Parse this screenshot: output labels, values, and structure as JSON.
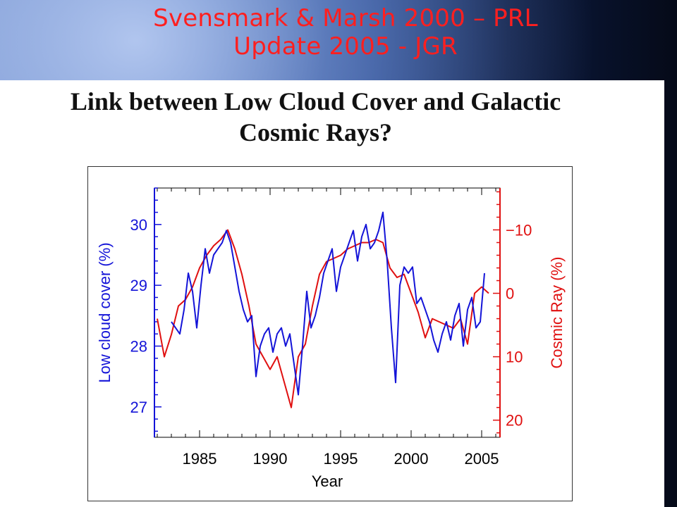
{
  "slide": {
    "title_line1": "Svensmark & Marsh 2000 – PRL",
    "title_line2": "Update 2005 - JGR",
    "heading_line1": "Link between Low Cloud Cover and Galactic",
    "heading_line2": "Cosmic Rays?"
  },
  "colors": {
    "title": "#ff1f1f",
    "cloud_series": "#1414d8",
    "cosmic_series": "#e01010"
  },
  "chart_data": {
    "type": "line",
    "title": "",
    "xlabel": "Year",
    "ylabel_left": "Low cloud cover (%)",
    "ylabel_right": "Cosmic Ray (%)",
    "xlim": [
      1981.8,
      2006.3
    ],
    "ylim_left": [
      26.5,
      30.6
    ],
    "ylim_right": [
      22.7,
      -16.6
    ],
    "right_axis_inverted": true,
    "x_ticks": [
      1985,
      1990,
      1995,
      2000,
      2005
    ],
    "y_ticks_left": [
      27,
      28,
      29,
      30
    ],
    "y_ticks_right": [
      -10,
      0,
      10,
      20
    ],
    "y_tick_labels_right": [
      "−10",
      "0",
      "10",
      "20"
    ],
    "grid": false,
    "series": [
      {
        "name": "Low cloud cover",
        "axis": "left",
        "x": [
          1983.0,
          1983.3,
          1983.6,
          1983.9,
          1984.2,
          1984.5,
          1984.8,
          1985.1,
          1985.4,
          1985.7,
          1986.0,
          1986.3,
          1986.6,
          1986.9,
          1987.2,
          1987.5,
          1987.8,
          1988.1,
          1988.4,
          1988.7,
          1989.0,
          1989.3,
          1989.6,
          1989.9,
          1990.2,
          1990.5,
          1990.8,
          1991.1,
          1991.4,
          1991.7,
          1992.0,
          1992.3,
          1992.6,
          1992.9,
          1993.2,
          1993.5,
          1993.8,
          1994.1,
          1994.4,
          1994.7,
          1995.0,
          1995.3,
          1995.6,
          1995.9,
          1996.2,
          1996.5,
          1996.8,
          1997.1,
          1997.4,
          1997.7,
          1998.0,
          1998.3,
          1998.6,
          1998.9,
          1999.2,
          1999.5,
          1999.8,
          2000.1,
          2000.4,
          2000.7,
          2001.0,
          2001.3,
          2001.6,
          2001.9,
          2002.2,
          2002.5,
          2002.8,
          2003.1,
          2003.4,
          2003.7,
          2004.0,
          2004.3,
          2004.6,
          2004.9,
          2005.2
        ],
        "values": [
          28.4,
          28.3,
          28.2,
          28.6,
          29.2,
          28.9,
          28.3,
          29.0,
          29.6,
          29.2,
          29.5,
          29.6,
          29.7,
          29.9,
          29.7,
          29.3,
          28.9,
          28.6,
          28.4,
          28.5,
          27.5,
          28.0,
          28.2,
          28.3,
          27.9,
          28.2,
          28.3,
          28.0,
          28.2,
          27.7,
          27.2,
          28.0,
          28.9,
          28.3,
          28.5,
          28.8,
          29.2,
          29.4,
          29.6,
          28.9,
          29.3,
          29.5,
          29.7,
          29.9,
          29.4,
          29.8,
          30.0,
          29.6,
          29.7,
          29.9,
          30.2,
          29.4,
          28.3,
          27.4,
          29.0,
          29.3,
          29.2,
          29.3,
          28.7,
          28.8,
          28.6,
          28.4,
          28.1,
          27.9,
          28.2,
          28.4,
          28.1,
          28.5,
          28.7,
          28.0,
          28.6,
          28.8,
          28.3,
          28.4,
          29.2
        ]
      },
      {
        "name": "Cosmic Ray",
        "axis": "right",
        "x": [
          1982.0,
          1982.5,
          1983.0,
          1983.5,
          1984.0,
          1984.5,
          1985.0,
          1985.5,
          1986.0,
          1986.5,
          1987.0,
          1987.5,
          1988.0,
          1988.5,
          1989.0,
          1989.5,
          1990.0,
          1990.5,
          1991.0,
          1991.5,
          1992.0,
          1992.5,
          1993.0,
          1993.5,
          1994.0,
          1994.5,
          1995.0,
          1995.5,
          1996.0,
          1996.5,
          1997.0,
          1997.5,
          1998.0,
          1998.5,
          1999.0,
          1999.5,
          2000.0,
          2000.5,
          2001.0,
          2001.5,
          2002.0,
          2002.5,
          2003.0,
          2003.5,
          2004.0,
          2004.5,
          2005.0,
          2005.5
        ],
        "values": [
          4.0,
          10.0,
          6.5,
          2.0,
          1.0,
          -1.0,
          -4.0,
          -6.0,
          -7.5,
          -8.5,
          -10.0,
          -7.0,
          -3.0,
          2.0,
          8.0,
          10.0,
          12.0,
          10.0,
          14.0,
          18.0,
          10.0,
          8.0,
          2.0,
          -3.0,
          -5.0,
          -5.5,
          -6.0,
          -7.0,
          -7.5,
          -8.0,
          -8.0,
          -8.5,
          -8.0,
          -4.0,
          -2.5,
          -3.0,
          0.0,
          3.0,
          7.0,
          4.0,
          4.5,
          5.0,
          5.5,
          4.0,
          8.0,
          0.0,
          -1.0,
          0.0
        ]
      }
    ]
  }
}
